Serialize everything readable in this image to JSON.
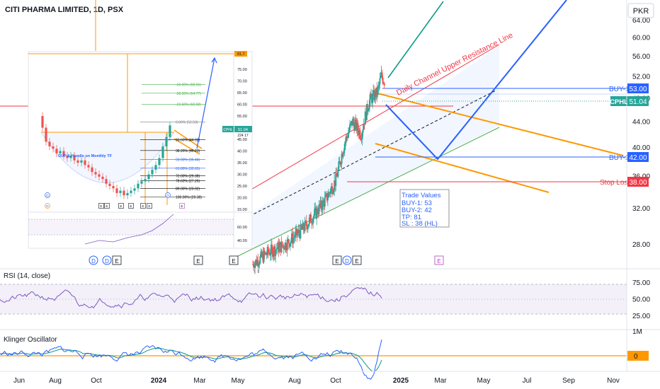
{
  "header": {
    "symbol_title": "CITI PHARMA LIMITED, 1D, PSX",
    "currency": "PKR"
  },
  "main_price_axis": {
    "ticks": [
      "64.00",
      "60.00",
      "56.00",
      "52.00",
      "48.00",
      "44.00",
      "40.00",
      "36.00",
      "32.00",
      "28.00"
    ],
    "values": [
      64,
      60,
      56,
      52,
      48,
      44,
      40,
      36,
      32,
      28
    ],
    "scale": "log"
  },
  "time_axis": {
    "labels": [
      "Jun",
      "Aug",
      "Oct",
      "2024",
      "Mar",
      "May",
      "Aug",
      "Oct",
      "2025",
      "Mar",
      "May",
      "Jul",
      "Sep",
      "Nov"
    ]
  },
  "badges": {
    "buy1_text": "BUY-1",
    "buy1_value": "53.00",
    "ticker": "CPHL",
    "last_price": "51.04",
    "buy2_text": "BUY-2",
    "buy2_value": "42.00",
    "stop_text": "Stop Loss",
    "stop_value": "38.00"
  },
  "annotations": {
    "channel_label": "Daily Channel Upper Resistance Line",
    "trade_values": {
      "title": "Trade Values",
      "lines": [
        "BUY-1: 53",
        "BUY-2: 42",
        "TP: 81",
        "SL : 38 (HL)"
      ]
    },
    "event_markers": [
      "E",
      "D",
      "E",
      "E",
      "E",
      "E",
      "E",
      "D",
      "E",
      "E"
    ]
  },
  "inset": {
    "title": "CUP & Handle on Monthly TF",
    "price_ticks": [
      "81.7",
      "75.00",
      "70.00",
      "65.00",
      "60.00",
      "55.00",
      "50.00",
      "45.00",
      "40.00",
      "35.00",
      "30.00",
      "25.00",
      "20.00",
      "15.00"
    ],
    "price_values": [
      81.7,
      75,
      70,
      65,
      60,
      55,
      50,
      45,
      40,
      35,
      30,
      25,
      20,
      15
    ],
    "ticker": "CPHL",
    "last_price": "51.04",
    "sub_price": "224 17",
    "sub_ticks": [
      "60.00",
      "40.00"
    ],
    "fib_levels": [
      {
        "label": "-50.00% (68.56)",
        "value": 68.56,
        "color": "#4caf50"
      },
      {
        "label": "-38.20% (64.77)",
        "value": 64.77,
        "color": "#4caf50"
      },
      {
        "label": "-23.60% (60.08)",
        "value": 60.08,
        "color": "#4caf50"
      },
      {
        "label": "0.00% (52.50)",
        "value": 52.5,
        "color": "#787b86"
      },
      {
        "label": "23.60% (44.92)",
        "value": 44.92,
        "color": "#000000"
      },
      {
        "label": "38.20% (40.23)",
        "value": 40.23,
        "color": "#000000"
      },
      {
        "label": "50.00% (36.44)",
        "value": 36.44,
        "color": "#2962ff"
      },
      {
        "label": "61.80% (32.65)",
        "value": 32.65,
        "color": "#2962ff"
      },
      {
        "label": "72.00% (29.38)",
        "value": 29.38,
        "color": "#000000"
      },
      {
        "label": "78.60% (27.26)",
        "value": 27.26,
        "color": "#000000"
      },
      {
        "label": "89.00% (23.92)",
        "value": 23.92,
        "color": "#000000"
      },
      {
        "label": "100.00% (20.38)",
        "value": 20.38,
        "color": "#000000"
      }
    ],
    "markers": [
      "D",
      "D",
      "D",
      "E",
      "E",
      "E",
      "E",
      "E",
      "E",
      "E"
    ]
  },
  "rsi": {
    "title": "RSI (14, close)",
    "ticks": [
      "75.00",
      "50.00",
      "25.00"
    ],
    "values": [
      75,
      50,
      25
    ],
    "upper": 70,
    "lower": 30
  },
  "klinger": {
    "title": "Klinger Oscillator",
    "top_tick": "1M",
    "zero_label": "0"
  },
  "colors": {
    "up": "#26a69a",
    "down": "#ef5350",
    "blue": "#2962ff",
    "orange": "#ff9800",
    "green_arrow": "#089981",
    "rsi_line": "#7e57c2",
    "klinger_line": "#2962ff",
    "klinger_signal": "#089981",
    "stop": "#f23645"
  },
  "chart_data": {
    "type": "candlestick",
    "title": "CITI PHARMA LIMITED, 1D, PSX",
    "y_unit": "PKR",
    "levels": {
      "buy_1": 53,
      "buy_2": 42,
      "take_profit": 81,
      "stop_loss": 38,
      "last_price": 51.04
    },
    "ylim": [
      26,
      66
    ],
    "x_labels": [
      "Jun",
      "Aug",
      "Oct",
      "2024",
      "Mar",
      "May",
      "Aug",
      "Oct",
      "2025",
      "Mar",
      "May",
      "Jul",
      "Sep",
      "Nov"
    ],
    "close_path": [
      {
        "date": "2024-04-20",
        "close": 26.0
      },
      {
        "date": "2024-05-20",
        "close": 27.2
      },
      {
        "date": "2024-06-20",
        "close": 28.0
      },
      {
        "date": "2024-07-20",
        "close": 29.5
      },
      {
        "date": "2024-08-15",
        "close": 31.5
      },
      {
        "date": "2024-09-01",
        "close": 33.0
      },
      {
        "date": "2024-09-20",
        "close": 35.5
      },
      {
        "date": "2024-10-05",
        "close": 40.5
      },
      {
        "date": "2024-10-20",
        "close": 44.0
      },
      {
        "date": "2024-11-05",
        "close": 42.0
      },
      {
        "date": "2024-11-20",
        "close": 47.5
      },
      {
        "date": "2024-12-05",
        "close": 49.0
      },
      {
        "date": "2024-12-12",
        "close": 52.0
      },
      {
        "date": "2024-12-18",
        "close": 51.04
      }
    ]
  }
}
